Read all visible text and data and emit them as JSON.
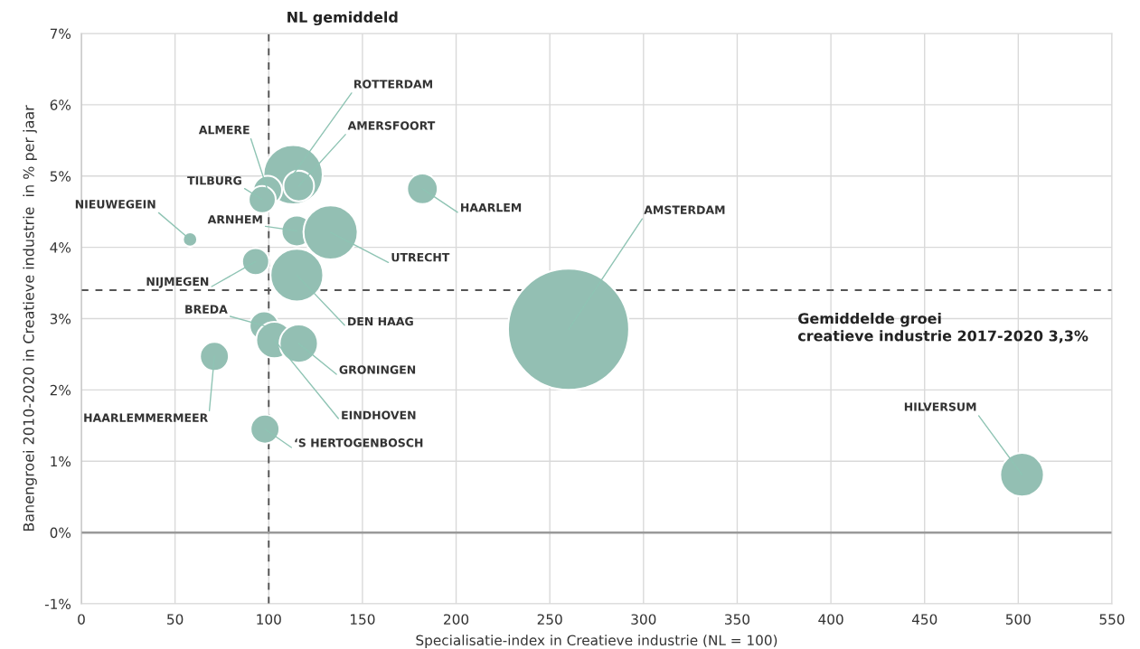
{
  "chart_data": {
    "type": "bubble",
    "xlabel": "Specialisatie-index in Creatieve industrie (NL = 100)",
    "ylabel": "Banengroei 2010-2020 in Creatieve industrie  in % per jaar",
    "series": [
      {
        "color": "#93bfb3",
        "x": [
          260,
          502,
          182,
          113,
          116,
          99.4,
          96.5,
          58,
          115,
          133,
          93,
          115,
          97.5,
          103,
          116,
          71,
          98
        ],
        "values": [
          2.85,
          0.81,
          4.82,
          5.02,
          4.86,
          4.8,
          4.67,
          4.11,
          4.23,
          4.21,
          3.8,
          3.61,
          2.9,
          2.7,
          2.65,
          2.47,
          1.45
        ],
        "sizes": [
          1,
          0.13,
          0.064,
          0.24,
          0.064,
          0.057,
          0.05,
          0.014,
          0.064,
          0.2,
          0.05,
          0.19,
          0.057,
          0.09,
          0.1,
          0.057,
          0.057
        ]
      }
    ],
    "annotations": [
      {
        "text": "AMSTERDAM",
        "x": 260,
        "y": 2.85
      },
      {
        "text": "HILVERSUM",
        "x": 502,
        "y": 0.81
      },
      {
        "text": "HAARLEM",
        "x": 182,
        "y": 4.82
      },
      {
        "text": "ROTTERDAM",
        "x": 113,
        "y": 5.02
      },
      {
        "text": "AMERSFOORT",
        "x": 116,
        "y": 4.86
      },
      {
        "text": "ALMERE",
        "x": 99.4,
        "y": 4.8
      },
      {
        "text": "TILBURG",
        "x": 96.5,
        "y": 4.67
      },
      {
        "text": "NIEUWEGEIN",
        "x": 58,
        "y": 4.11
      },
      {
        "text": "ARNHEM",
        "x": 115,
        "y": 4.23
      },
      {
        "text": "UTRECHT",
        "x": 133,
        "y": 4.21
      },
      {
        "text": "NIJMEGEN",
        "x": 93,
        "y": 3.8
      },
      {
        "text": "DEN HAAG",
        "x": 115,
        "y": 3.61
      },
      {
        "text": "BREDA",
        "x": 97.5,
        "y": 2.9
      },
      {
        "text": "EINDHOVEN",
        "x": 103,
        "y": 2.7
      },
      {
        "text": "GRONINGEN",
        "x": 116,
        "y": 2.65
      },
      {
        "text": "HAARLEMMERMEER",
        "x": 71,
        "y": 2.47
      },
      {
        "text": "‘S HERTOGENBOSCH",
        "x": 98,
        "y": 1.45
      }
    ],
    "ref_lines": [
      {
        "axis": "x",
        "value": 100,
        "label": "NL gemiddeld",
        "line_style": "dashed",
        "color": "#555555"
      },
      {
        "axis": "y",
        "value": 3.4,
        "label": "Gemiddelde groei\ncreatieve industrie 2017-2020 3,3%",
        "line_style": "dashed",
        "color": "#555555"
      },
      {
        "axis": "y",
        "value": 0,
        "line_style": "solid",
        "color": "#999999"
      }
    ],
    "xlim": [
      0,
      550
    ],
    "xticks": [
      0,
      50,
      100,
      150,
      200,
      250,
      300,
      350,
      400,
      450,
      500,
      550
    ],
    "ylim": [
      -1,
      7
    ],
    "yticks": [
      {
        "value": -1,
        "label": "-1%"
      },
      {
        "value": 0,
        "label": "0%"
      },
      {
        "value": 1,
        "label": "1%"
      },
      {
        "value": 2,
        "label": "2%"
      },
      {
        "value": 3,
        "label": "3%"
      },
      {
        "value": 4,
        "label": "4%"
      },
      {
        "value": 5,
        "label": "5%"
      },
      {
        "value": 6,
        "label": "6%"
      },
      {
        "value": 7,
        "label": "7%"
      }
    ],
    "grid": true
  }
}
